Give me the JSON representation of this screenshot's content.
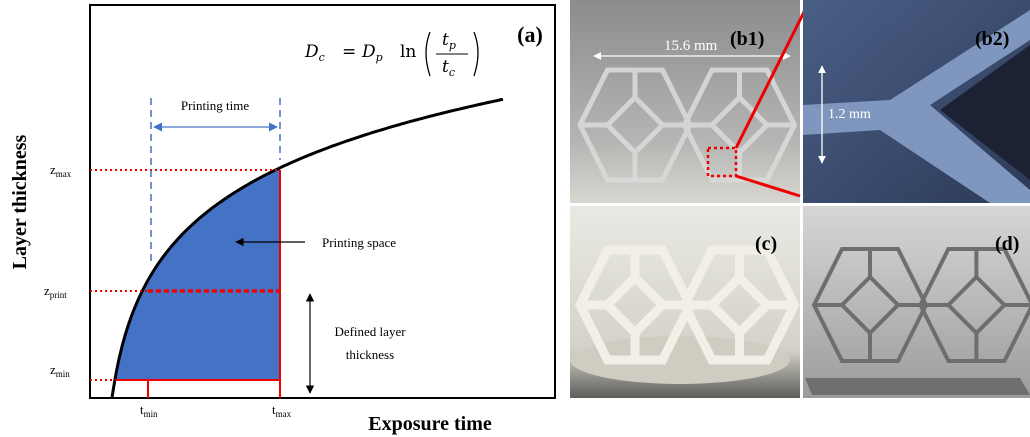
{
  "panel_a": {
    "label": "(a)",
    "y_axis_title": "Layer thickness",
    "x_axis_title": "Exposure time",
    "equation": {
      "lhs": {
        "base": "D",
        "sub": "c"
      },
      "eq": "=",
      "rhs": {
        "base": "D",
        "sub": "p"
      },
      "fn": "ln",
      "num": {
        "base": "t",
        "sub": "p"
      },
      "den": {
        "base": "t",
        "sub": "c"
      }
    },
    "y_labels": {
      "max": {
        "base": "z",
        "sub": "max"
      },
      "print": {
        "base": "z",
        "sub": "print"
      },
      "min": {
        "base": "z",
        "sub": "min"
      }
    },
    "x_labels": {
      "min": {
        "base": "t",
        "sub": "min"
      },
      "max": {
        "base": "t",
        "sub": "max"
      }
    },
    "printing_time": "Printing time",
    "printing_space": "Printing space",
    "defined_layer_thickness": [
      "Defined layer",
      "thickness"
    ]
  },
  "photos": {
    "b1": {
      "label": "(b1)",
      "scale": "15.6 mm"
    },
    "b2": {
      "label": "(b2)",
      "scale": "1.2 mm"
    },
    "c": {
      "label": "(c)"
    },
    "d": {
      "label": "(d)"
    }
  }
}
